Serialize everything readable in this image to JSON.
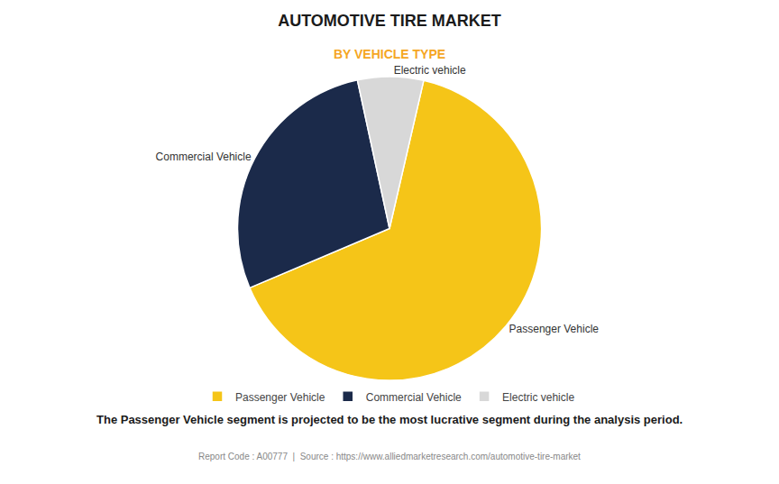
{
  "chart_data": {
    "type": "pie",
    "title": "AUTOMOTIVE TIRE MARKET",
    "subtitle": "BY VEHICLE TYPE",
    "categories": [
      "Passenger Vehicle",
      "Commercial Vehicle",
      "Electric vehicle"
    ],
    "values": [
      65,
      28,
      7
    ],
    "colors": [
      "#F5C518",
      "#1B2A4A",
      "#D8D8D8"
    ],
    "legend": "bottom",
    "annotations": [
      "The Passenger Vehicle segment is projected to be the most lucrative segment during the analysis period.",
      "Report Code : A00777  |  Source : https://www.alliedmarketresearch.com/automotive-tire-market"
    ]
  }
}
